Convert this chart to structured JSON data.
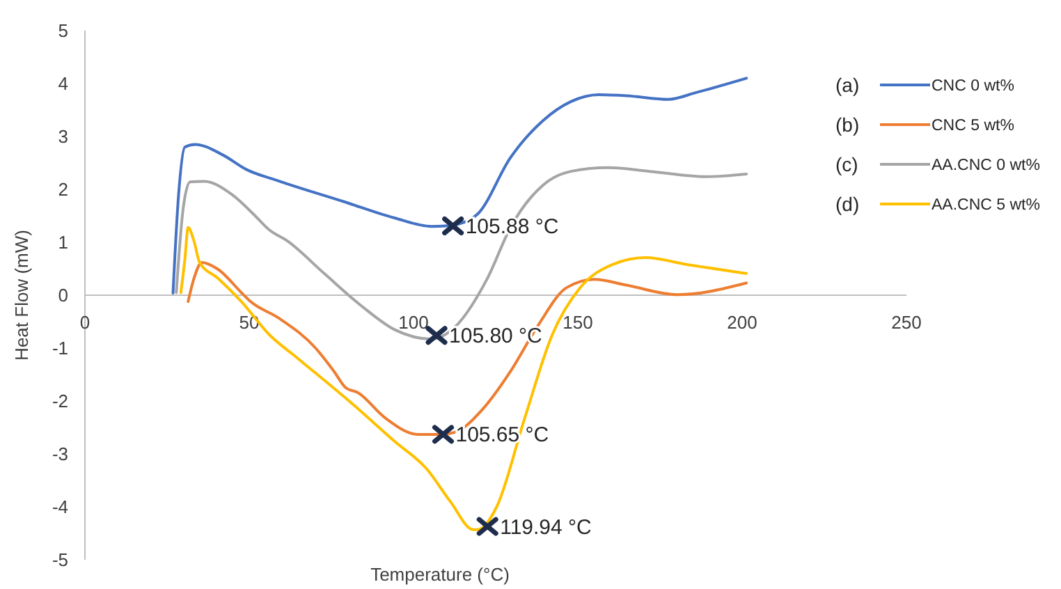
{
  "chart_data": {
    "type": "line",
    "xlabel": "Temperature (°C)",
    "ylabel": "Heat Flow (mW)",
    "xlim": [
      0,
      250
    ],
    "xticks": [
      0,
      50,
      100,
      150,
      200,
      250
    ],
    "ylim": [
      -5,
      5
    ],
    "yticks": [
      -5,
      -4,
      -3,
      -2,
      -1,
      0,
      1,
      2,
      3,
      4,
      5
    ],
    "grid": false,
    "legend": "right",
    "marker": "none",
    "line_style": "solid",
    "series": [
      {
        "name": "CNC 0 wt%",
        "color": "#4472c4",
        "x": [
          26.8,
          28.5,
          30.4,
          33.5,
          42,
          49,
          58.9,
          78.7,
          94.2,
          105.5,
          109.7,
          114,
          119.6,
          129.5,
          139.4,
          147.9,
          156.4,
          164.8,
          177.5,
          186,
          201.3
        ],
        "values": [
          0.04,
          1.9,
          2.8,
          2.85,
          2.65,
          2.38,
          2.16,
          1.77,
          1.46,
          1.3,
          1.31,
          1.35,
          1.54,
          2.6,
          3.3,
          3.66,
          3.79,
          3.77,
          3.7,
          3.83,
          4.1
        ]
      },
      {
        "name": "CNC 5 wt%",
        "color": "#ed7d31",
        "x": [
          31.4,
          33.2,
          35.6,
          40.5,
          47.6,
          50.4,
          58.9,
          70.2,
          75.8,
          79.4,
          83,
          91.4,
          101.3,
          108.3,
          112.6,
          121.1,
          129.5,
          138,
          146.5,
          155,
          164.8,
          180.4,
          201.3
        ],
        "values": [
          -0.12,
          0.32,
          0.62,
          0.49,
          0.05,
          -0.12,
          -0.43,
          -1.0,
          -1.44,
          -1.75,
          -1.84,
          -2.32,
          -2.63,
          -2.63,
          -2.59,
          -2.15,
          -1.44,
          -0.56,
          0.14,
          0.3,
          0.19,
          0.01,
          0.23
        ]
      },
      {
        "name": "AA.CNC 0 wt%",
        "color": "#a5a5a5",
        "x": [
          27.8,
          29.9,
          32,
          36.3,
          44.8,
          51.8,
          56,
          61.7,
          73,
          84.3,
          94.2,
          105.5,
          111,
          122.5,
          129.5,
          139.4,
          147.9,
          159.2,
          171.9,
          188.9,
          201.3
        ],
        "values": [
          0.05,
          1.64,
          2.14,
          2.15,
          1.9,
          1.5,
          1.24,
          1.02,
          0.4,
          -0.21,
          -0.65,
          -0.83,
          -0.69,
          0.32,
          1.28,
          2.08,
          2.34,
          2.41,
          2.34,
          2.24,
          2.29
        ]
      },
      {
        "name": "AA.CNC 5 wt%",
        "color": "#ffc000",
        "x": [
          29.2,
          30.4,
          31.4,
          33.2,
          34.9,
          40.5,
          47.6,
          56,
          64.5,
          81.5,
          94.2,
          104.1,
          111.2,
          118.2,
          119.6,
          125.3,
          133.8,
          142.2,
          150.7,
          160.6,
          170.5,
          183.2,
          201.3
        ],
        "values": [
          0.05,
          0.67,
          1.28,
          1.02,
          0.62,
          0.32,
          -0.12,
          -0.74,
          -1.18,
          -2.06,
          -2.76,
          -3.29,
          -3.9,
          -4.43,
          -4.43,
          -4.0,
          -2.33,
          -0.75,
          0.14,
          0.58,
          0.71,
          0.58,
          0.41
        ]
      }
    ],
    "annotations": [
      "(a)",
      "(b)",
      "(c)",
      "(d)",
      {
        "text": "105.88 °C",
        "x": 112,
        "y": 1.31
      },
      {
        "text": "105.80 °C",
        "x": 107,
        "y": -0.76
      },
      {
        "text": "105.65 °C",
        "x": 109,
        "y": -2.63
      },
      {
        "text": "119.94 °C",
        "x": 122.5,
        "y": -4.37
      }
    ]
  }
}
